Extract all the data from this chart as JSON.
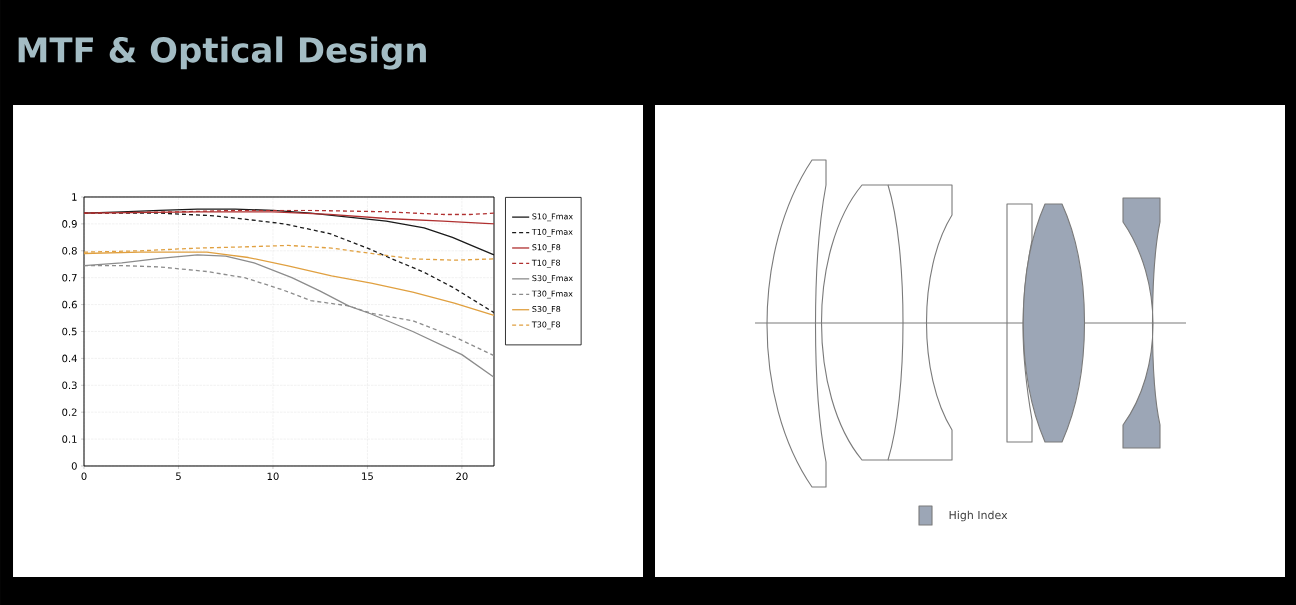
{
  "chart_data": [
    {
      "type": "line",
      "title": "MTF & Optical Design",
      "xlim": [
        0,
        21.7
      ],
      "ylim": [
        0,
        1
      ],
      "xticks": [
        0,
        5,
        10,
        15,
        20
      ],
      "yticks": [
        0,
        0.1,
        0.2,
        0.3,
        0.4,
        0.5,
        0.6,
        0.7,
        0.8,
        0.9,
        1
      ],
      "grid": true,
      "legend": "right",
      "marker": "none",
      "series": [
        {
          "name": "S10_Fmax",
          "color": "#1a1a1a",
          "line_style": "solid",
          "x": [
            0,
            2,
            4,
            6,
            8,
            10,
            12,
            14,
            16,
            18,
            19.5,
            20.5,
            21.7
          ],
          "values": [
            0.94,
            0.945,
            0.95,
            0.955,
            0.955,
            0.95,
            0.94,
            0.925,
            0.91,
            0.885,
            0.85,
            0.82,
            0.785
          ]
        },
        {
          "name": "T10_Fmax",
          "color": "#1a1a1a",
          "line_style": "dashed",
          "x": [
            0,
            4,
            6.9,
            8.7,
            10.6,
            13,
            15,
            16.3,
            18,
            19.5,
            21.7
          ],
          "values": [
            0.94,
            0.94,
            0.93,
            0.916,
            0.9,
            0.864,
            0.81,
            0.77,
            0.72,
            0.665,
            0.57
          ]
        },
        {
          "name": "S10_F8",
          "color": "#b03030",
          "line_style": "solid",
          "x": [
            0,
            6,
            10,
            13,
            16,
            19,
            21.7
          ],
          "values": [
            0.94,
            0.945,
            0.945,
            0.935,
            0.92,
            0.91,
            0.9
          ]
        },
        {
          "name": "T10_F8",
          "color": "#b03030",
          "line_style": "dashed",
          "x": [
            0,
            5,
            8,
            12,
            16,
            19,
            20.5,
            21.7
          ],
          "values": [
            0.94,
            0.945,
            0.95,
            0.95,
            0.945,
            0.935,
            0.935,
            0.94
          ]
        },
        {
          "name": "S30_Fmax",
          "color": "#8c8c8c",
          "line_style": "solid",
          "x": [
            0,
            2,
            4,
            6,
            7.5,
            9,
            11,
            12.5,
            14,
            15.2,
            17.4,
            20,
            21.7
          ],
          "values": [
            0.745,
            0.755,
            0.772,
            0.785,
            0.78,
            0.755,
            0.7,
            0.65,
            0.595,
            0.565,
            0.5,
            0.414,
            0.33
          ]
        },
        {
          "name": "T30_Fmax",
          "color": "#8c8c8c",
          "line_style": "dashed",
          "x": [
            0,
            2,
            4,
            6.5,
            8.5,
            10.5,
            12,
            14,
            15.2,
            17.4,
            19.6,
            21.7
          ],
          "values": [
            0.745,
            0.745,
            0.74,
            0.723,
            0.7,
            0.655,
            0.615,
            0.595,
            0.568,
            0.54,
            0.48,
            0.41
          ]
        },
        {
          "name": "S30_F8",
          "color": "#e0a040",
          "line_style": "solid",
          "x": [
            0,
            3,
            6.5,
            8.7,
            10.8,
            13.1,
            15.2,
            17.4,
            19.6,
            21.7
          ],
          "values": [
            0.79,
            0.795,
            0.795,
            0.775,
            0.744,
            0.707,
            0.68,
            0.646,
            0.605,
            0.56
          ]
        },
        {
          "name": "T30_F8",
          "color": "#e0a040",
          "line_style": "dashed",
          "x": [
            0,
            3,
            6,
            8.7,
            10.8,
            13.1,
            15.2,
            17.4,
            19.6,
            21.7
          ],
          "values": [
            0.795,
            0.8,
            0.81,
            0.815,
            0.82,
            0.81,
            0.79,
            0.77,
            0.765,
            0.77
          ]
        }
      ]
    },
    {
      "type": "other",
      "annotations": [
        "High Index"
      ]
    }
  ]
}
